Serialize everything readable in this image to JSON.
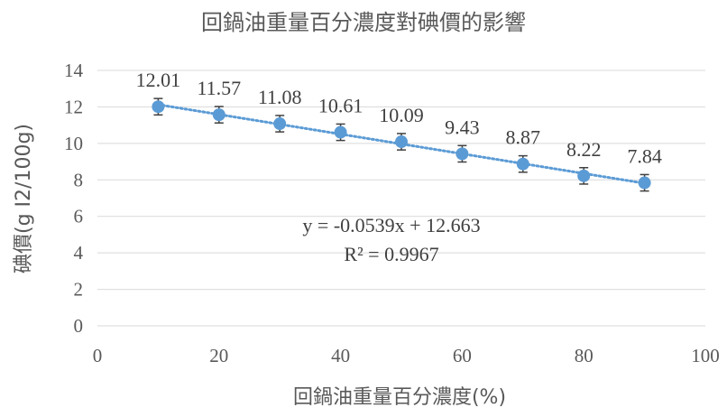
{
  "chart_data": {
    "type": "scatter",
    "title": "回鍋油重量百分濃度對碘價的影響",
    "xlabel": "回鍋油重量百分濃度(%)",
    "ylabel": "碘價(g I2/100g)",
    "xlim": [
      0,
      100
    ],
    "ylim": [
      0,
      14
    ],
    "x_ticks": [
      0,
      20,
      40,
      60,
      80,
      100
    ],
    "y_ticks": [
      0,
      2,
      4,
      6,
      8,
      10,
      12,
      14
    ],
    "grid": "horizontal",
    "series": [
      {
        "x": [
          10,
          20,
          30,
          40,
          50,
          60,
          70,
          80,
          90
        ],
        "values": [
          12.01,
          11.57,
          11.08,
          10.61,
          10.09,
          9.43,
          8.87,
          8.22,
          7.84
        ],
        "data_labels": [
          "12.01",
          "11.57",
          "11.08",
          "10.61",
          "10.09",
          "9.43",
          "8.87",
          "8.22",
          "7.84"
        ],
        "error": [
          0.45,
          0.45,
          0.45,
          0.45,
          0.45,
          0.45,
          0.45,
          0.45,
          0.45
        ]
      }
    ],
    "trendline": {
      "type": "linear",
      "slope": -0.0539,
      "intercept": 12.663,
      "equation": "y = -0.0539x + 12.663",
      "r_squared": "R² = 0.9967"
    },
    "colors": {
      "marker": "#5B9BD5",
      "trendline": "#5B9BD5",
      "grid": "#D9D9D9",
      "error_bar": "#404040"
    }
  }
}
